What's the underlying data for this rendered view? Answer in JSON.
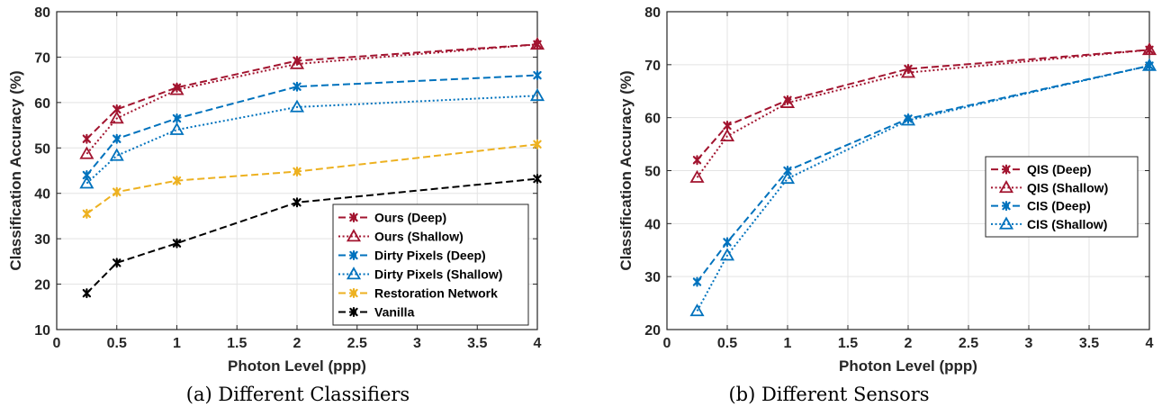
{
  "charts": [
    {
      "caption": "(a) Different Classifiers",
      "xlabel": "Photon Level (ppp)",
      "ylabel": "Classification Accuracy (%)",
      "xlim": [
        0,
        4
      ],
      "ylim": [
        10,
        80
      ],
      "xticks": [
        "0",
        "0.5",
        "1",
        "1.5",
        "2",
        "2.5",
        "3",
        "3.5",
        "4"
      ],
      "yticks": [
        "10",
        "20",
        "30",
        "40",
        "50",
        "60",
        "70",
        "80"
      ],
      "legend_position": "bottom-right",
      "series": [
        {
          "name": "Ours (Deep)",
          "color": "#a2142f",
          "dash": "dashed",
          "marker": "star",
          "x": [
            0.25,
            0.5,
            1,
            2,
            4
          ],
          "y": [
            52.0,
            58.5,
            63.3,
            69.2,
            72.8
          ]
        },
        {
          "name": "Ours (Shallow)",
          "color": "#a2142f",
          "dash": "dotted",
          "marker": "triangle",
          "x": [
            0.25,
            0.5,
            1,
            2,
            4
          ],
          "y": [
            48.7,
            56.5,
            62.8,
            68.5,
            72.8
          ]
        },
        {
          "name": "Dirty Pixels (Deep)",
          "color": "#0072bd",
          "dash": "dashed",
          "marker": "star",
          "x": [
            0.25,
            0.5,
            1,
            2,
            4
          ],
          "y": [
            44.0,
            52.0,
            56.5,
            63.5,
            66.0
          ]
        },
        {
          "name": "Dirty Pixels (Shallow)",
          "color": "#0072bd",
          "dash": "dotted",
          "marker": "triangle",
          "x": [
            0.25,
            0.5,
            1,
            2,
            4
          ],
          "y": [
            42.2,
            48.3,
            54.0,
            59.0,
            61.5
          ]
        },
        {
          "name": "Restoration Network",
          "color": "#edb120",
          "dash": "dashed",
          "marker": "star",
          "x": [
            0.25,
            0.5,
            1,
            2,
            4
          ],
          "y": [
            35.5,
            40.3,
            42.8,
            44.8,
            50.8
          ]
        },
        {
          "name": "Vanilla",
          "color": "#000000",
          "dash": "dashed",
          "marker": "star",
          "x": [
            0.25,
            0.5,
            1,
            2,
            4
          ],
          "y": [
            18.0,
            24.7,
            29.0,
            38.0,
            43.2
          ]
        }
      ]
    },
    {
      "caption": "(b) Different Sensors",
      "xlabel": "Photon Level (ppp)",
      "ylabel": "Classification Accuracy (%)",
      "xlim": [
        0,
        4
      ],
      "ylim": [
        20,
        80
      ],
      "xticks": [
        "0",
        "0.5",
        "1",
        "1.5",
        "2",
        "2.5",
        "3",
        "3.5",
        "4"
      ],
      "yticks": [
        "20",
        "30",
        "40",
        "50",
        "60",
        "70",
        "80"
      ],
      "legend_position": "center-right",
      "series": [
        {
          "name": "QIS (Deep)",
          "color": "#a2142f",
          "dash": "dashed",
          "marker": "star",
          "x": [
            0.25,
            0.5,
            1,
            2,
            4
          ],
          "y": [
            52.0,
            58.5,
            63.3,
            69.2,
            72.8
          ]
        },
        {
          "name": "QIS (Shallow)",
          "color": "#a2142f",
          "dash": "dotted",
          "marker": "triangle",
          "x": [
            0.25,
            0.5,
            1,
            2,
            4
          ],
          "y": [
            48.7,
            56.5,
            62.8,
            68.5,
            72.8
          ]
        },
        {
          "name": "CIS (Deep)",
          "color": "#0072bd",
          "dash": "dashed",
          "marker": "star",
          "x": [
            0.25,
            0.5,
            1,
            2,
            4
          ],
          "y": [
            29.0,
            36.5,
            50.0,
            59.8,
            69.8
          ]
        },
        {
          "name": "CIS (Shallow)",
          "color": "#0072bd",
          "dash": "dotted",
          "marker": "triangle",
          "x": [
            0.25,
            0.5,
            1,
            2,
            4
          ],
          "y": [
            23.5,
            34.0,
            48.5,
            59.5,
            69.8
          ]
        }
      ]
    }
  ]
}
